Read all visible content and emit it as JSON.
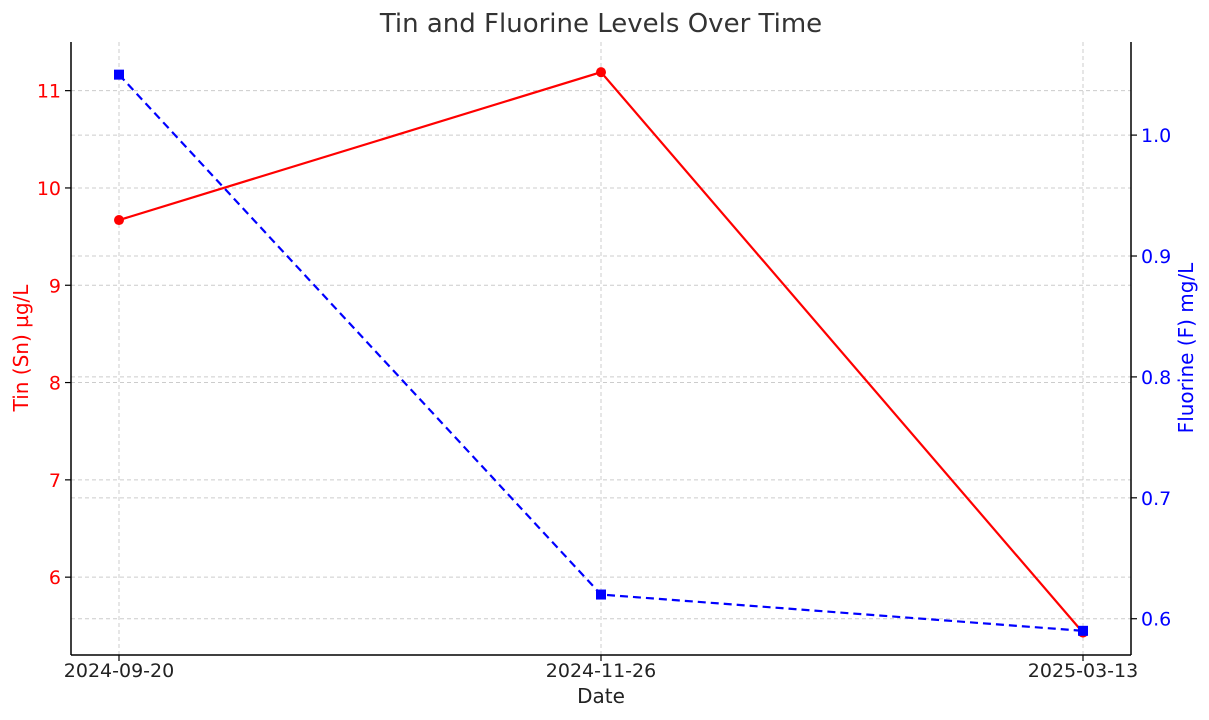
{
  "chart_data": {
    "type": "line",
    "title": "Tin and Fluorine Levels Over Time",
    "xlabel": "Date",
    "x": [
      "2024-09-20",
      "2024-11-26",
      "2025-03-13"
    ],
    "grid": true,
    "left_axis": {
      "label": "Tin (Sn) µg/L",
      "color": "#ff0000",
      "ylim": [
        5.2,
        11.5
      ],
      "ticks": [
        6,
        7,
        8,
        9,
        10,
        11
      ]
    },
    "right_axis": {
      "label": "Fluorine (F) mg/L",
      "color": "#0000ff",
      "ylim": [
        0.57,
        1.077
      ],
      "ticks": [
        0.6,
        0.7,
        0.8,
        0.9,
        1.0
      ],
      "tick_labels": [
        "0.6",
        "0.7",
        "0.8",
        "0.9",
        "1.0"
      ]
    },
    "series": [
      {
        "axis": "left",
        "values": [
          9.67,
          11.19,
          5.43
        ],
        "color": "#ff0000",
        "marker": "circle",
        "line_style": "solid"
      },
      {
        "axis": "right",
        "values": [
          1.05,
          0.62,
          0.59
        ],
        "color": "#0000ff",
        "marker": "square",
        "line_style": "dashed"
      }
    ]
  }
}
